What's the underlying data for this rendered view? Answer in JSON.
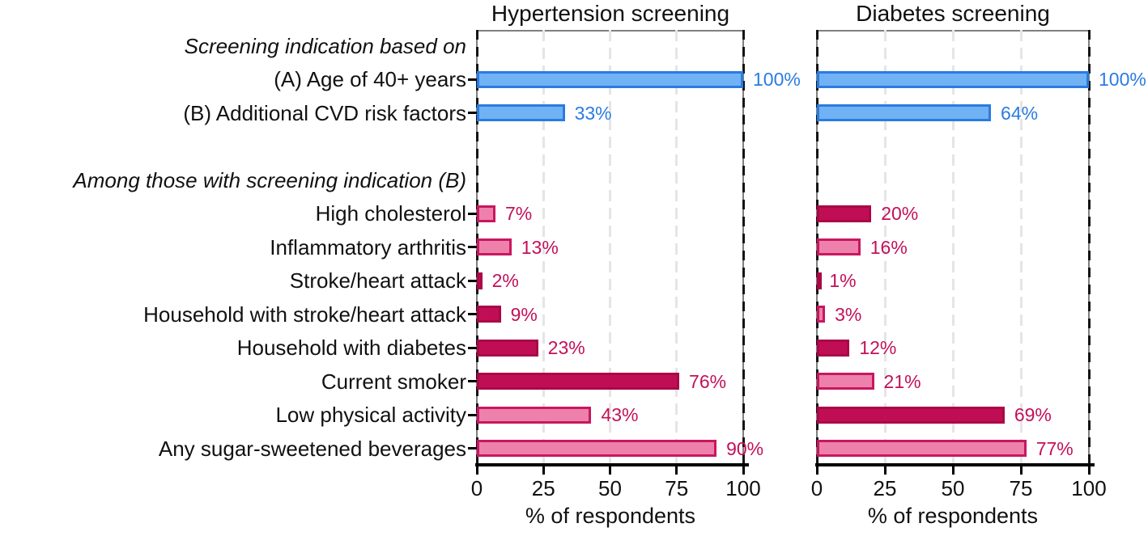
{
  "chart_data": {
    "type": "bar",
    "orientation": "horizontal",
    "xlabel": "% of respondents",
    "xlim": [
      0,
      100
    ],
    "x_ticks": [
      0,
      25,
      50,
      75,
      100
    ],
    "grid": "vertical dashed gridlines at 25/50/75 (light gray) and 0/100 (black dashed)",
    "legend": "none",
    "panels": [
      {
        "key": "hyp",
        "title": "Hypertension screening"
      },
      {
        "key": "dia",
        "title": "Diabetes screening"
      }
    ],
    "rows": [
      {
        "type": "header",
        "label": "Screening indication based on"
      },
      {
        "type": "bar",
        "label": "(A) Age of 40+ years",
        "hyp": {
          "value": 100,
          "label": "100%",
          "shade": "blue"
        },
        "dia": {
          "value": 100,
          "label": "100%",
          "shade": "blue"
        }
      },
      {
        "type": "bar",
        "label": "(B) Additional CVD risk factors",
        "hyp": {
          "value": 33,
          "label": "33%",
          "shade": "blue"
        },
        "dia": {
          "value": 64,
          "label": "64%",
          "shade": "blue"
        }
      },
      {
        "type": "spacer",
        "label": ""
      },
      {
        "type": "header",
        "label": "Among those with screening indication (B)"
      },
      {
        "type": "bar",
        "label": "High cholesterol",
        "hyp": {
          "value": 7,
          "label": "7%",
          "shade": "pink_light"
        },
        "dia": {
          "value": 20,
          "label": "20%",
          "shade": "pink_dark"
        }
      },
      {
        "type": "bar",
        "label": "Inflammatory arthritis",
        "hyp": {
          "value": 13,
          "label": "13%",
          "shade": "pink_light"
        },
        "dia": {
          "value": 16,
          "label": "16%",
          "shade": "pink_light"
        }
      },
      {
        "type": "bar",
        "label": "Stroke/heart attack",
        "hyp": {
          "value": 2,
          "label": "2%",
          "shade": "pink_dark"
        },
        "dia": {
          "value": 1,
          "label": "1%",
          "shade": "pink_dark"
        }
      },
      {
        "type": "bar",
        "label": "Household with stroke/heart attack",
        "hyp": {
          "value": 9,
          "label": "9%",
          "shade": "pink_dark"
        },
        "dia": {
          "value": 3,
          "label": "3%",
          "shade": "pink_light"
        }
      },
      {
        "type": "bar",
        "label": "Household with diabetes",
        "hyp": {
          "value": 23,
          "label": "23%",
          "shade": "pink_dark"
        },
        "dia": {
          "value": 12,
          "label": "12%",
          "shade": "pink_dark"
        }
      },
      {
        "type": "bar",
        "label": "Current smoker",
        "hyp": {
          "value": 76,
          "label": "76%",
          "shade": "pink_dark"
        },
        "dia": {
          "value": 21,
          "label": "21%",
          "shade": "pink_light"
        }
      },
      {
        "type": "bar",
        "label": "Low physical activity",
        "hyp": {
          "value": 43,
          "label": "43%",
          "shade": "pink_light"
        },
        "dia": {
          "value": 69,
          "label": "69%",
          "shade": "pink_dark"
        }
      },
      {
        "type": "bar",
        "label": "Any sugar-sweetened beverages",
        "hyp": {
          "value": 90,
          "label": "90%",
          "shade": "pink_light"
        },
        "dia": {
          "value": 77,
          "label": "77%",
          "shade": "pink_light"
        }
      }
    ]
  },
  "colors": {
    "blue_fill": "#70B2F4",
    "blue_border": "#2A7BE2",
    "blue_text": "#2A7BE2",
    "pink_light_fill": "#EE80AC",
    "pink_light_border": "#C81760",
    "pink_dark_fill": "#C00E55",
    "pink_dark_border": "#AB0747",
    "pink_text": "#C31059",
    "grid_light": "#E5E5E5",
    "grid_dark": "#141414",
    "frame": "#7F7F7F",
    "axis": "#000000",
    "text": "#111111"
  }
}
